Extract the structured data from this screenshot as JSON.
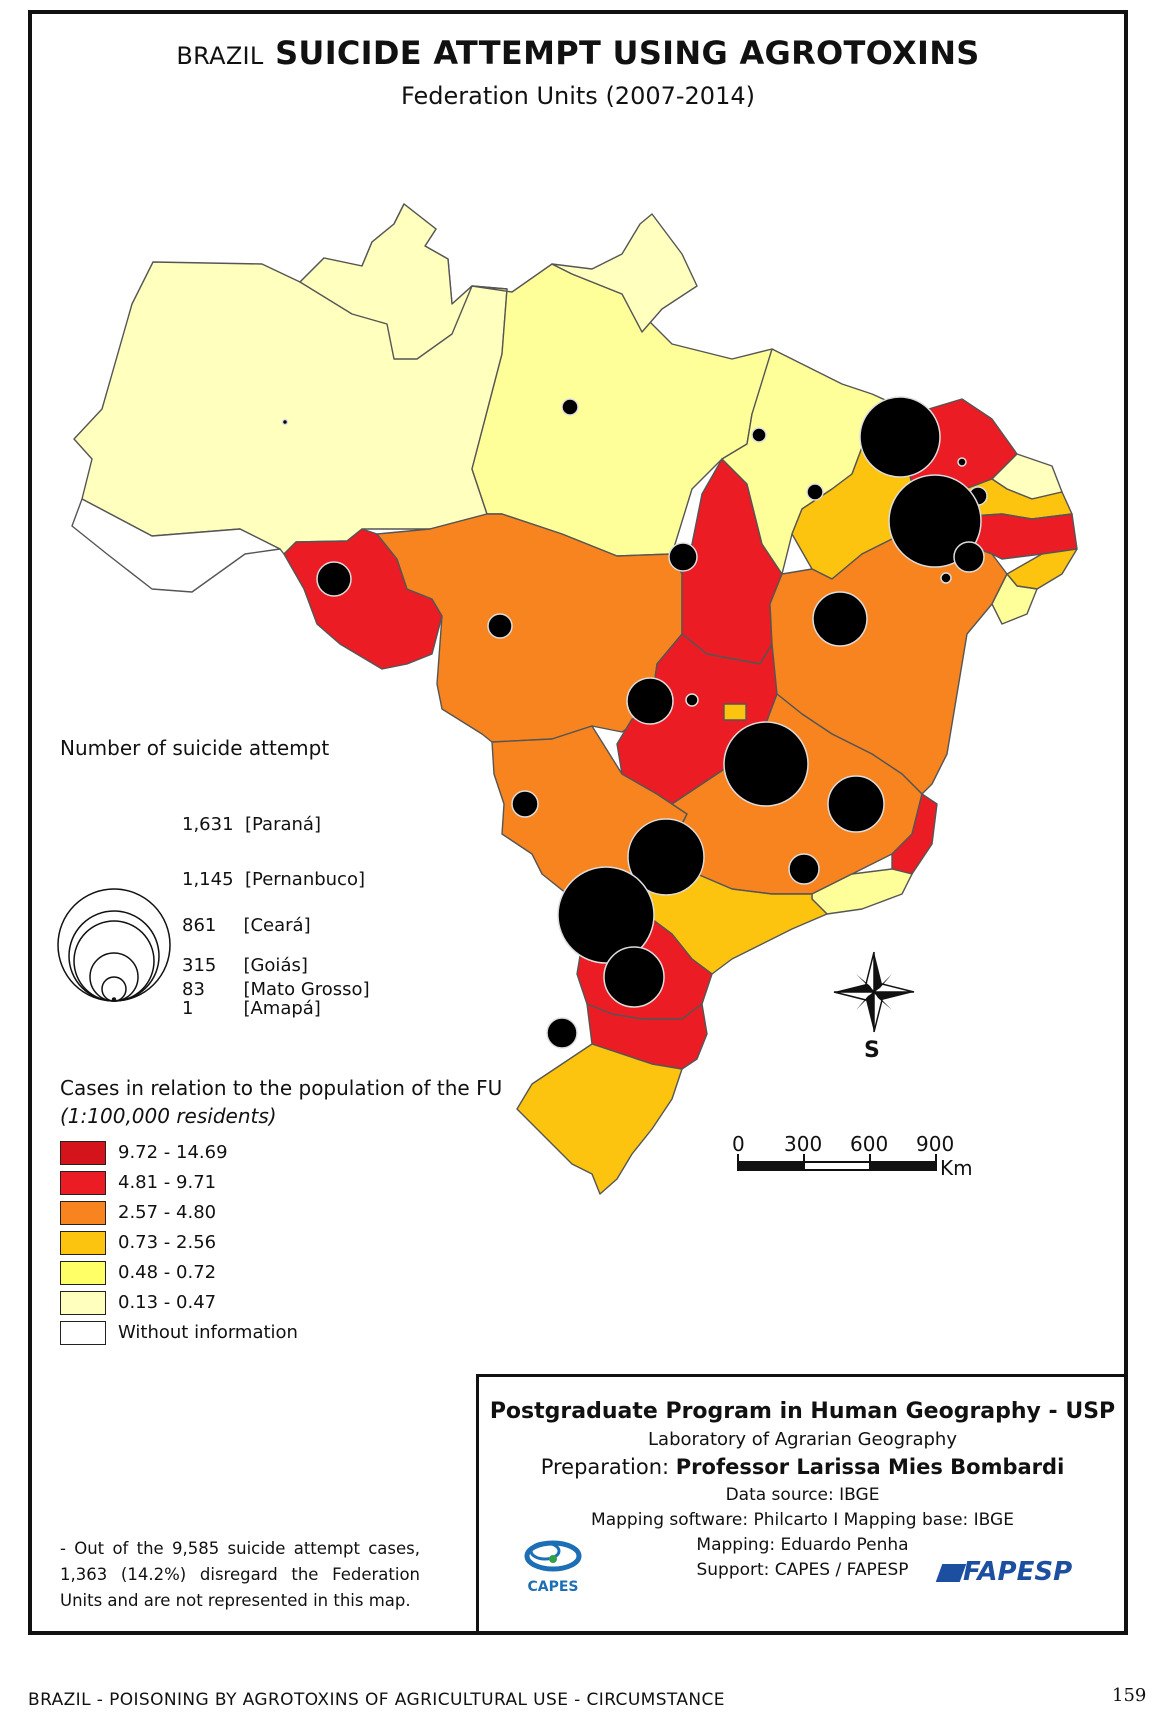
{
  "title": {
    "prefix": "BRAZIL",
    "main": "SUICIDE ATTEMPT USING AGROTOXINS"
  },
  "subtitle": "Federation Units (2007-2014)",
  "circle_legend": {
    "heading": "Number of suicide attempt",
    "items": [
      {
        "value": "1,631",
        "state": "[Paraná]"
      },
      {
        "value": "1,145",
        "state": "[Pernanbuco]"
      },
      {
        "value": "861",
        "state": "[Ceará]"
      },
      {
        "value": "315",
        "state": "[Goiás]"
      },
      {
        "value": "83",
        "state": "[Mato Grosso]"
      },
      {
        "value": "1",
        "state": "[Amapá]"
      }
    ]
  },
  "rate_legend": {
    "heading": "Cases in relation to the population of the FU",
    "subheading": "(1:100,000 residents)",
    "classes": [
      {
        "label": "9.72 - 14.69",
        "color": "#d4141a"
      },
      {
        "label": "4.81 - 9.71",
        "color": "#ec1c24"
      },
      {
        "label": "2.57 - 4.80",
        "color": "#f7841f"
      },
      {
        "label": "0.73 - 2.56",
        "color": "#fcc30f"
      },
      {
        "label": "0.48 - 0.72",
        "color": "#ffff66"
      },
      {
        "label": "0.13 - 0.47",
        "color": "#ffffbe"
      },
      {
        "label": "Without information",
        "color": "#ffffff"
      }
    ]
  },
  "note": "- Out of the 9,585 suicide attempt cases, 1,363 (14.2%) disregard the Federation Units and are not represented in this map.",
  "compass": {
    "label": "S"
  },
  "scale_bar": {
    "ticks": [
      "0",
      "300",
      "600",
      "900"
    ],
    "unit": "Km"
  },
  "credits": {
    "program": "Postgraduate Program in Human Geography - USP",
    "lab": "Laboratory of Agrarian Geography",
    "preparation_label": "Preparation:",
    "preparation_name": "Professor Larissa Mies Bombardi",
    "data_source": "Data source: IBGE",
    "software": "Mapping software: Philcarto I Mapping base: IBGE",
    "mapping": "Mapping: Eduardo Penha",
    "support": "Support: CAPES / FAPESP",
    "logo_left": "CAPES",
    "logo_right": "FAPESP"
  },
  "footer": "BRAZIL - POISONING BY AGROTOXINS OF AGRICULTURAL USE - CIRCUMSTANCE",
  "page_number": "159"
}
